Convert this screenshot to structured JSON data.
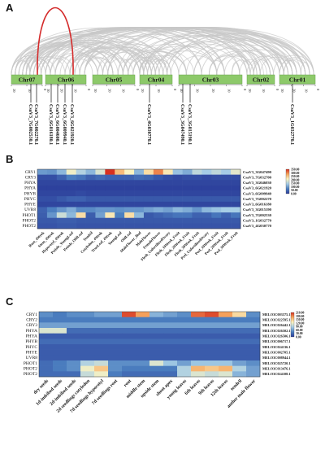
{
  "panels": {
    "a": {
      "letter": "A"
    },
    "b": {
      "letter": "B"
    },
    "c": {
      "letter": "C"
    }
  },
  "synteny": {
    "chromosomes": [
      {
        "name": "Chr07",
        "scale": [
          "20",
          "10",
          "0"
        ]
      },
      {
        "name": "Chr06",
        "scale": [
          "30",
          "20",
          "10",
          "0"
        ]
      },
      {
        "name": "Chr05",
        "scale": [
          "30",
          "20",
          "10",
          "0"
        ]
      },
      {
        "name": "Chr04",
        "scale": [
          "20",
          "10",
          "0"
        ]
      },
      {
        "name": "Chr03",
        "scale": [
          "40",
          "30",
          "20",
          "10",
          "0"
        ]
      },
      {
        "name": "Chr02",
        "scale": [
          "20",
          "10",
          "0"
        ]
      },
      {
        "name": "Chr01",
        "scale": [
          "30",
          "20",
          "10",
          "0"
        ]
      }
    ],
    "gene_labels": [
      "CsaV3_7G002530.1",
      "CsaV3_7G002270.1",
      "CsaV3_6G016180.1",
      "CsaV3_6G004600.1",
      "CsaV3_6G009940.1",
      "CsaV3_6G021920.1",
      "CsaV3_4G030770.1",
      "CsaV3_3G047490.1",
      "CsaV3_3G015190.1",
      "CsaV3_1G032770.1"
    ],
    "colors": {
      "chromosome": "#8dc96a",
      "link": "#c8c8c8",
      "highlight": "#d42b2b"
    }
  },
  "chart_data": [
    {
      "type": "heatmap",
      "title": "",
      "rows": [
        "CRY1",
        "CRY3",
        "PHYA",
        "PHYA",
        "PHYB",
        "PHYC",
        "PHYE",
        "UVR8",
        "PHOT1",
        "PHOT2",
        "PHOT2"
      ],
      "gene_ids": [
        "CsaV3_3G047490",
        "CsaV3_7G032700",
        "CsaV3_3G046030",
        "CsaV3_6G021920",
        "CsaV3_6G009940",
        "CsaV3_7G002270",
        "CsaV3_6G016180",
        "CsaV3_3G015190",
        "CsaV3_7G002530",
        "CsaV3_1G032770",
        "CsaV3_4G030770"
      ],
      "columns": [
        "Root_4Week",
        "Stem_4Week",
        "Hypocotyl_4Week",
        "Petiole_YoungLeaf",
        "Petiole_OldLeaf",
        "Tendril",
        "Cotyledon_4Week",
        "TrueLeaf_4Week",
        "YoungLeaf",
        "OldLeaf",
        "MaleFlower_Bud",
        "MaleFlower",
        "FemaleFlower",
        "Flesh_UnfertilizedOvary",
        "Flesh_10Week_Fruit",
        "Flesh_20Week_Fruit",
        "Flesh_30Week_Fruit",
        "Peel_UnfertilizedOvary",
        "Peel_10Week_Fruit",
        "Peel_20Week_Fruit",
        "Peel_30Week_Fruit"
      ],
      "values": [
        [
          95,
          90,
          120,
          200,
          150,
          120,
          180,
          360,
          260,
          210,
          120,
          230,
          300,
          220,
          130,
          110,
          160,
          140,
          160,
          140,
          190
        ],
        [
          20,
          20,
          40,
          70,
          60,
          40,
          50,
          40,
          40,
          40,
          50,
          45,
          30,
          20,
          15,
          20,
          20,
          15,
          20,
          20,
          20
        ],
        [
          10,
          10,
          10,
          10,
          10,
          10,
          10,
          10,
          10,
          10,
          10,
          10,
          10,
          10,
          10,
          10,
          10,
          10,
          10,
          10,
          10
        ],
        [
          5,
          5,
          5,
          5,
          5,
          5,
          5,
          5,
          5,
          5,
          5,
          5,
          5,
          5,
          5,
          5,
          5,
          5,
          5,
          5,
          5
        ],
        [
          10,
          10,
          10,
          10,
          15,
          10,
          10,
          10,
          10,
          10,
          10,
          10,
          10,
          10,
          10,
          10,
          10,
          10,
          10,
          10,
          10
        ],
        [
          20,
          20,
          30,
          40,
          40,
          30,
          30,
          30,
          30,
          30,
          30,
          30,
          30,
          30,
          30,
          30,
          30,
          30,
          30,
          30,
          30
        ],
        [
          10,
          10,
          10,
          10,
          10,
          10,
          10,
          10,
          10,
          10,
          10,
          10,
          10,
          10,
          10,
          10,
          10,
          10,
          10,
          10,
          10
        ],
        [
          40,
          70,
          90,
          110,
          80,
          80,
          90,
          90,
          85,
          90,
          90,
          100,
          110,
          100,
          120,
          110,
          90,
          120,
          130,
          140,
          140
        ],
        [
          35,
          90,
          170,
          120,
          230,
          35,
          100,
          220,
          70,
          230,
          120,
          30,
          40,
          50,
          60,
          60,
          40,
          40,
          60,
          40,
          60
        ],
        [
          30,
          30,
          35,
          35,
          30,
          30,
          30,
          30,
          30,
          30,
          30,
          30,
          30,
          30,
          30,
          30,
          30,
          30,
          30,
          30,
          30
        ],
        [
          25,
          25,
          30,
          30,
          25,
          25,
          25,
          25,
          25,
          25,
          25,
          25,
          25,
          25,
          25,
          25,
          25,
          25,
          25,
          25,
          25
        ]
      ],
      "color_scale": {
        "ticks": [
          "350.00",
          "300.00",
          "250.00",
          "200.00",
          "150.00",
          "100.00",
          "50.00",
          "0.00"
        ],
        "min": 0,
        "max": 350,
        "colors": [
          "#2b3c9a",
          "#4c7fc0",
          "#a6cde6",
          "#fbf3c1",
          "#f6a65e",
          "#d7301f"
        ]
      }
    },
    {
      "type": "heatmap",
      "title": "",
      "rows": [
        "CRY1",
        "CRY2",
        "CRY3",
        "PHYA",
        "PHYA",
        "PHYB",
        "PHYC",
        "PHYE",
        "UVR8",
        "PHOT1",
        "PHOT2",
        "PHOT2"
      ],
      "gene_ids": [
        "MELO3C003575.1",
        "MELO3C022595.1",
        "MELO3C026442.1",
        "MELO3C026502.1",
        "MELO3C026506.1",
        "MELO3C006717.1",
        "MELO3C024136.1",
        "MELO3C002705.1",
        "MELO3C008944.1",
        "MELO3C025720.1",
        "MELO3C013476.1",
        "MELO3C024108.1"
      ],
      "columns": [
        "dry seeds",
        "1d-imbibed seeds",
        "2d-imbibed seeds",
        "2d seedlings cotyledon",
        "7d seedlings hypocotyl",
        "7d seedlings root",
        "root",
        "middle stem",
        "upside stem",
        "shoot apex",
        "young leaves",
        "6th leaves",
        "9th leaves",
        "12th leaves",
        "tendril",
        "anther male flower"
      ],
      "values": [
        [
          50,
          40,
          50,
          50,
          60,
          60,
          200,
          170,
          70,
          60,
          50,
          190,
          200,
          170,
          140,
          50
        ],
        [
          40,
          40,
          40,
          40,
          40,
          40,
          40,
          40,
          40,
          40,
          40,
          40,
          40,
          40,
          40,
          40
        ],
        [
          60,
          60,
          60,
          60,
          60,
          60,
          60,
          60,
          60,
          60,
          60,
          60,
          60,
          60,
          60,
          60
        ],
        [
          110,
          110,
          30,
          30,
          30,
          30,
          30,
          30,
          30,
          30,
          30,
          30,
          30,
          30,
          30,
          30
        ],
        [
          20,
          20,
          20,
          20,
          20,
          20,
          20,
          20,
          20,
          20,
          20,
          20,
          20,
          20,
          20,
          20
        ],
        [
          30,
          30,
          30,
          30,
          30,
          30,
          30,
          30,
          30,
          30,
          30,
          30,
          30,
          30,
          30,
          30
        ],
        [
          20,
          20,
          20,
          20,
          20,
          20,
          20,
          20,
          20,
          20,
          20,
          20,
          20,
          20,
          20,
          20
        ],
        [
          20,
          20,
          20,
          20,
          20,
          20,
          20,
          20,
          20,
          20,
          20,
          20,
          20,
          20,
          20,
          20
        ],
        [
          20,
          20,
          20,
          20,
          20,
          20,
          20,
          20,
          20,
          20,
          20,
          20,
          20,
          20,
          20,
          20
        ],
        [
          30,
          40,
          50,
          90,
          100,
          50,
          50,
          50,
          110,
          80,
          60,
          80,
          80,
          80,
          60,
          50
        ],
        [
          30,
          40,
          50,
          120,
          150,
          50,
          40,
          40,
          40,
          40,
          90,
          160,
          150,
          160,
          90,
          60
        ],
        [
          30,
          30,
          30,
          100,
          120,
          40,
          30,
          30,
          30,
          30,
          90,
          110,
          100,
          110,
          70,
          60
        ]
      ],
      "color_scale": {
        "ticks": [
          "210.00",
          "180.00",
          "150.00",
          "120.00",
          "90.00",
          "60.00",
          "30.00",
          "0.00"
        ],
        "min": 0,
        "max": 210,
        "colors": [
          "#2b3c9a",
          "#4c7fc0",
          "#a6cde6",
          "#fbf3c1",
          "#f6a65e",
          "#d7301f"
        ]
      }
    }
  ]
}
